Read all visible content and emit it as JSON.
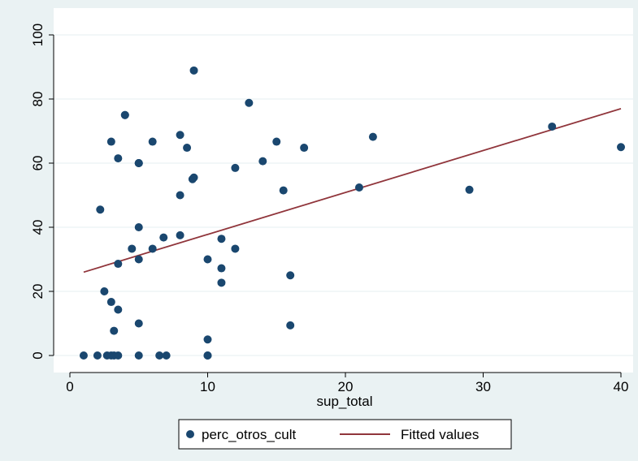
{
  "chart_data": {
    "type": "scatter",
    "xlabel": "sup_total",
    "ylabel": "",
    "xlim": [
      0,
      40
    ],
    "ylim": [
      0,
      100
    ],
    "xticks": [
      0,
      10,
      20,
      30,
      40
    ],
    "yticks": [
      0,
      20,
      40,
      60,
      80,
      100
    ],
    "grid": true,
    "legend_position": "bottom-center",
    "colors": {
      "background": "#eaf2f3",
      "plot_area": "#ffffff",
      "grid": "#eaf2f3",
      "points": "#1a476f",
      "fit_line": "#90353b"
    },
    "series": [
      {
        "name": "perc_otros_cult",
        "kind": "points",
        "x": [
          1,
          2,
          2.2,
          2.5,
          2.7,
          3,
          3,
          3,
          3.2,
          3.2,
          3.5,
          3.5,
          3.5,
          3.5,
          4,
          4,
          4.5,
          5,
          5,
          5,
          5,
          5,
          5,
          5,
          6,
          6,
          6.5,
          6.8,
          7,
          8,
          8,
          8,
          8.5,
          8.9,
          9,
          9,
          10,
          10,
          10,
          10,
          11,
          11,
          11,
          12,
          12,
          13,
          14,
          15,
          15.5,
          16,
          16,
          17,
          21,
          22,
          29,
          35,
          40
        ],
        "y": [
          0,
          0,
          45.5,
          20,
          0,
          0,
          16.7,
          66.7,
          0,
          7.7,
          0,
          14.3,
          28.6,
          61.5,
          75,
          75,
          33.3,
          0,
          10,
          30,
          40,
          60,
          60,
          60,
          33.3,
          66.7,
          0,
          36.8,
          0,
          37.5,
          50,
          68.8,
          64.8,
          55,
          55.5,
          88.9,
          0,
          0,
          5,
          30,
          22.7,
          27.2,
          36.4,
          33.3,
          58.5,
          78.8,
          60.6,
          66.7,
          51.5,
          9.4,
          25,
          64.8,
          52.4,
          68.2,
          51.7,
          71.4,
          65
        ]
      },
      {
        "name": "Fitted values",
        "kind": "line",
        "x": [
          1,
          40
        ],
        "y": [
          26,
          77
        ]
      }
    ]
  }
}
